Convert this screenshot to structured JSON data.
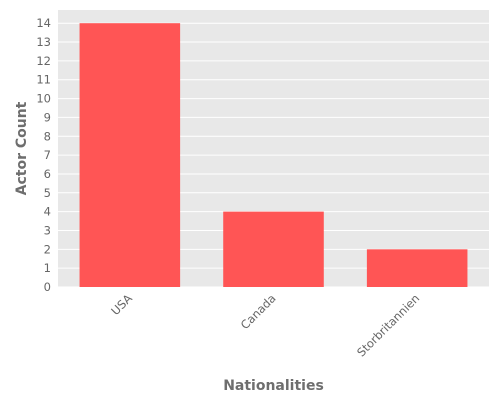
{
  "chart_data": {
    "type": "bar",
    "categories": [
      "USA",
      "Canada",
      "Storbritannien"
    ],
    "values": [
      14,
      4,
      2
    ],
    "title": "",
    "xlabel": "Nationalities",
    "ylabel": "Actor Count",
    "ylim": [
      0,
      14.7
    ],
    "yticks": [
      0,
      1,
      2,
      3,
      4,
      5,
      6,
      7,
      8,
      9,
      10,
      11,
      12,
      13,
      14
    ],
    "grid": true,
    "bar_color": "#ff5555",
    "background_color": "#e8e8e8",
    "grid_color": "#ffffff"
  }
}
